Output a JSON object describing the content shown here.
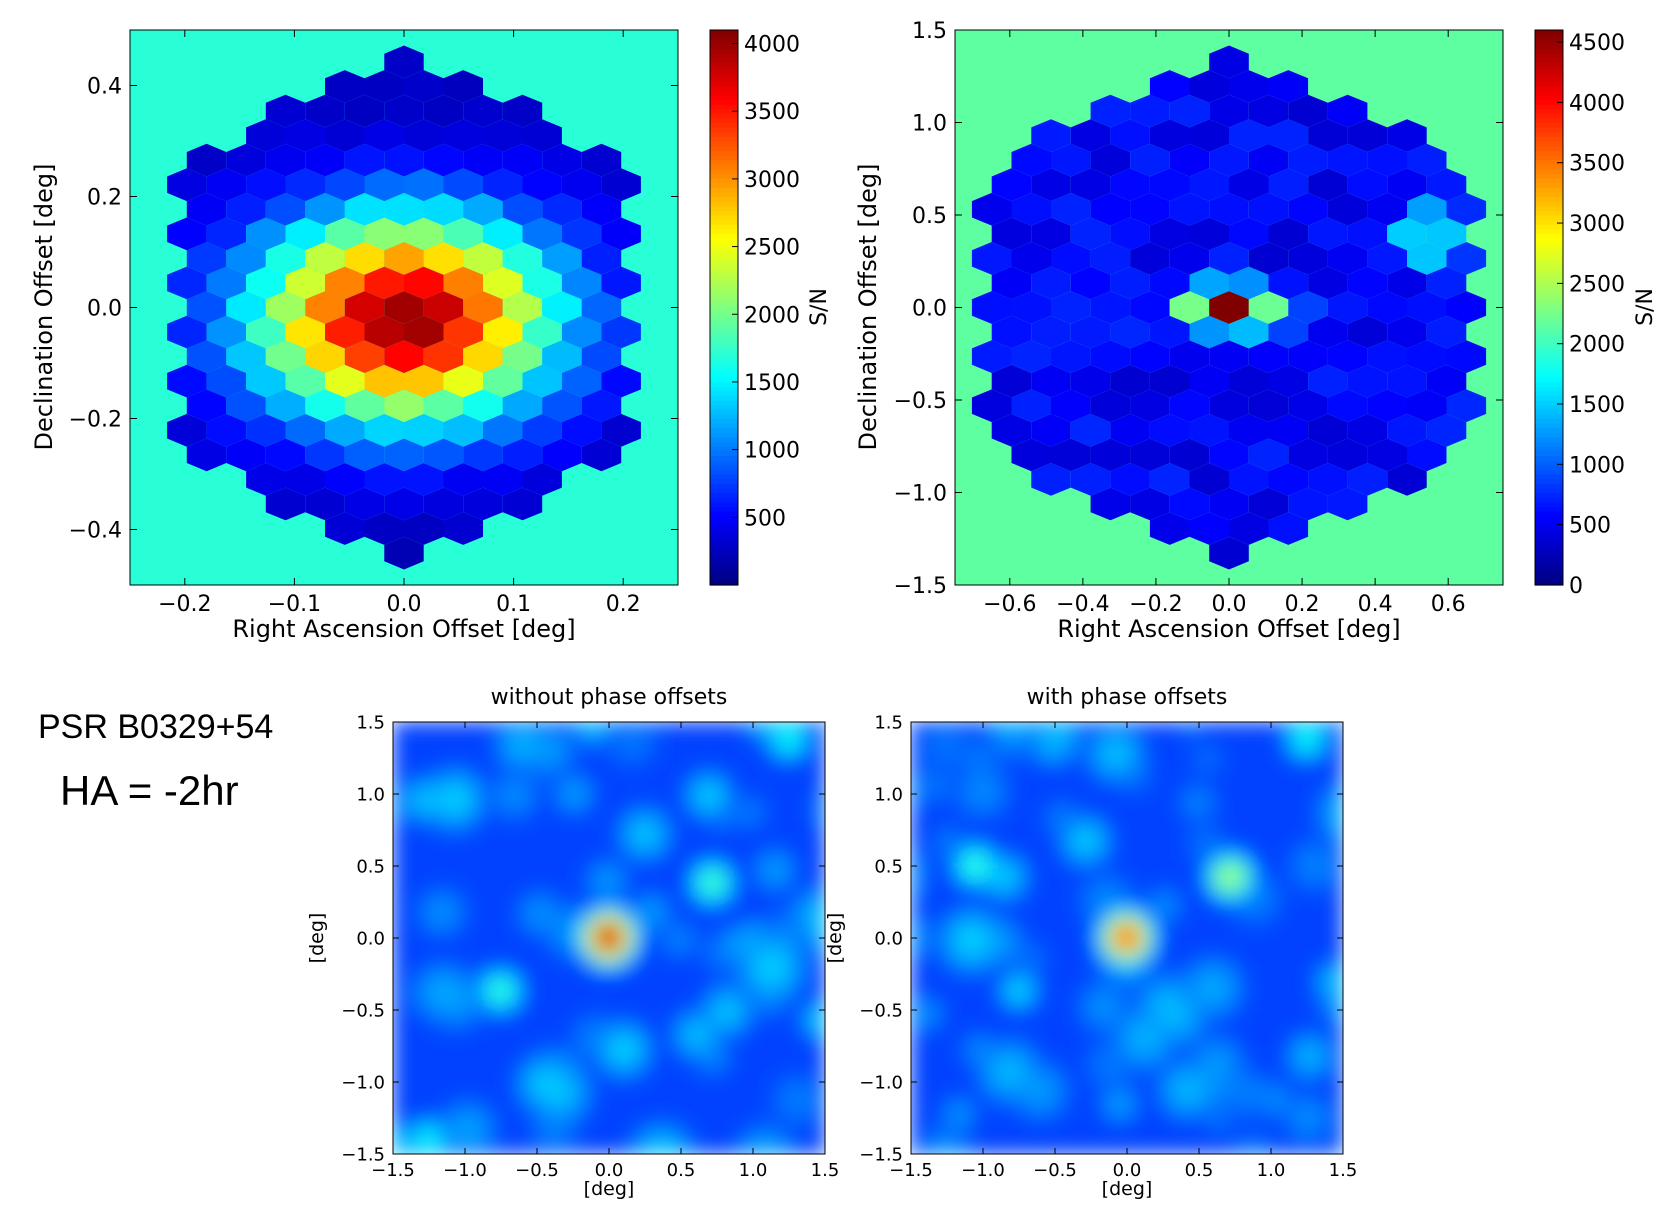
{
  "source_label": "PSR B0329+54",
  "hour_angle_label": "HA = -2hr",
  "chart_data": [
    {
      "type": "heatmap",
      "subtype": "hexbin",
      "title": "",
      "xlabel": "Right Ascension Offset [deg]",
      "ylabel": "Declination Offset [deg]",
      "colorbar_label": "S/N",
      "xlim": [
        -0.25,
        0.25
      ],
      "ylim": [
        -0.5,
        0.5
      ],
      "xticks": [
        -0.2,
        -0.1,
        0.0,
        0.1,
        0.2
      ],
      "xtick_labels": [
        "−0.2",
        "−0.1",
        "0.0",
        "0.1",
        "0.2"
      ],
      "yticks": [
        -0.4,
        -0.2,
        0.0,
        0.2,
        0.4
      ],
      "ytick_labels": [
        "−0.4",
        "−0.2",
        "0.0",
        "0.2",
        "0.4"
      ],
      "clim": [
        0,
        4100
      ],
      "cbar_ticks": [
        500,
        1000,
        1500,
        2000,
        2500,
        3000,
        3500,
        4000
      ],
      "cbar_tick_labels": [
        "500",
        "1000",
        "1500",
        "2000",
        "2500",
        "3000",
        "3500",
        "4000"
      ],
      "background_value": 1700,
      "hex_size_x": 0.0208,
      "hex_size_y": 0.0295,
      "hex_extent_x": 0.21,
      "hex_extent_y": 0.47,
      "model": {
        "peak": 4050,
        "center_x": 0.0,
        "center_y": -0.02,
        "sigma_x": 0.095,
        "sigma_y": 0.13,
        "floor": 250
      }
    },
    {
      "type": "heatmap",
      "subtype": "hexbin",
      "title": "",
      "xlabel": "Right Ascension Offset [deg]",
      "ylabel": "Declination Offset [deg]",
      "colorbar_label": "S/N",
      "xlim": [
        -0.75,
        0.75
      ],
      "ylim": [
        -1.5,
        1.5
      ],
      "xticks": [
        -0.6,
        -0.4,
        -0.2,
        0.0,
        0.2,
        0.4,
        0.6
      ],
      "xtick_labels": [
        "−0.6",
        "−0.4",
        "−0.2",
        "0.0",
        "0.2",
        "0.4",
        "0.6"
      ],
      "yticks": [
        -1.5,
        -1.0,
        -0.5,
        0.0,
        0.5,
        1.0,
        1.5
      ],
      "ytick_labels": [
        "−1.5",
        "−1.0",
        "−0.5",
        "0.0",
        "0.5",
        "1.0",
        "1.5"
      ],
      "clim": [
        0,
        4600
      ],
      "cbar_ticks": [
        0,
        500,
        1000,
        1500,
        2000,
        2500,
        3000,
        3500,
        4000,
        4500
      ],
      "cbar_tick_labels": [
        "0",
        "500",
        "1000",
        "1500",
        "2000",
        "2500",
        "3000",
        "3500",
        "4000",
        "4500"
      ],
      "background_value": 2150,
      "hex_size_x": 0.0625,
      "hex_size_y": 0.0885,
      "hex_extent_x": 0.66,
      "hex_extent_y": 1.42,
      "model": {
        "peak": 4550,
        "center_x": 0.0,
        "center_y": 0.0,
        "sigma_x": 0.085,
        "sigma_y": 0.075,
        "floor": 500,
        "sidelobes": [
          {
            "x": 0.56,
            "y": 0.45,
            "value": 1900,
            "sigma": 0.07
          },
          {
            "x": 0.52,
            "y": 0.3,
            "value": 1500,
            "sigma": 0.06
          }
        ]
      }
    },
    {
      "type": "heatmap",
      "subtype": "image",
      "title": "without phase offsets",
      "xlabel": "[deg]",
      "ylabel": "[deg]",
      "xlim": [
        -1.5,
        1.5
      ],
      "ylim": [
        -1.5,
        1.5
      ],
      "xticks": [
        -1.5,
        -1.0,
        -0.5,
        0.0,
        0.5,
        1.0,
        1.5
      ],
      "xtick_labels": [
        "−1.5",
        "−1.0",
        "−0.5",
        "0.0",
        "0.5",
        "1.0",
        "1.5"
      ],
      "yticks": [
        -1.5,
        -1.0,
        -0.5,
        0.0,
        0.5,
        1.0,
        1.5
      ],
      "ytick_labels": [
        "−1.5",
        "−1.0",
        "−0.5",
        "0.0",
        "0.5",
        "1.0",
        "1.5"
      ],
      "main_beam": {
        "x": 0.0,
        "y": 0.0,
        "peak": 1.0
      },
      "sidelobes": [
        {
          "x": 0.72,
          "y": 0.38,
          "value": 0.4
        },
        {
          "x": -0.75,
          "y": -0.37,
          "value": 0.38
        },
        {
          "x": 1.25,
          "y": 1.38,
          "value": 0.34
        },
        {
          "x": -1.25,
          "y": -1.4,
          "value": 0.32
        }
      ]
    },
    {
      "type": "heatmap",
      "subtype": "image",
      "title": "with phase offsets",
      "xlabel": "[deg]",
      "ylabel": "[deg]",
      "xlim": [
        -1.5,
        1.5
      ],
      "ylim": [
        -1.5,
        1.5
      ],
      "xticks": [
        -1.5,
        -1.0,
        -0.5,
        0.0,
        0.5,
        1.0,
        1.5
      ],
      "xtick_labels": [
        "−1.5",
        "−1.0",
        "−0.5",
        "0.0",
        "0.5",
        "1.0",
        "1.5"
      ],
      "yticks": [
        -1.5,
        -1.0,
        -0.5,
        0.0,
        0.5,
        1.0,
        1.5
      ],
      "ytick_labels": [
        "−1.5",
        "−1.0",
        "−0.5",
        "0.0",
        "0.5",
        "1.0",
        "1.5"
      ],
      "main_beam": {
        "x": 0.0,
        "y": 0.0,
        "peak": 0.86
      },
      "sidelobes": [
        {
          "x": 0.72,
          "y": 0.42,
          "value": 0.52
        },
        {
          "x": -1.05,
          "y": 0.5,
          "value": 0.38
        },
        {
          "x": 1.25,
          "y": 1.38,
          "value": 0.34
        },
        {
          "x": -0.75,
          "y": -0.37,
          "value": 0.28
        }
      ]
    }
  ]
}
